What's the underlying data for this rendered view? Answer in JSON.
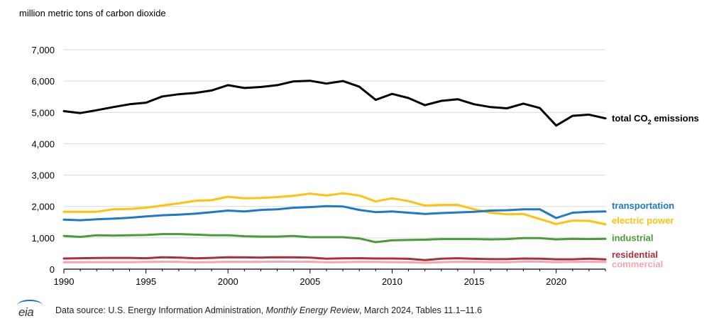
{
  "chart_data": {
    "type": "line",
    "unit_label": "million metric tons of carbon dioxide",
    "x": [
      1990,
      1991,
      1992,
      1993,
      1994,
      1995,
      1996,
      1997,
      1998,
      1999,
      2000,
      2001,
      2002,
      2003,
      2004,
      2005,
      2006,
      2007,
      2008,
      2009,
      2010,
      2011,
      2012,
      2013,
      2014,
      2015,
      2016,
      2017,
      2018,
      2019,
      2020,
      2021,
      2022,
      2023
    ],
    "xlim": [
      1990,
      2023
    ],
    "xticks": [
      1990,
      1995,
      2000,
      2005,
      2010,
      2015,
      2020
    ],
    "ylim": [
      0,
      7000
    ],
    "yticks": [
      0,
      1000,
      2000,
      3000,
      4000,
      5000,
      6000,
      7000
    ],
    "ytick_labels": [
      "0",
      "1,000",
      "2,000",
      "3,000",
      "4,000",
      "5,000",
      "6,000",
      "7,000"
    ],
    "grid": "horizontal",
    "series": [
      {
        "name": "commercial",
        "color": "#f4a6b0",
        "label_y": 170,
        "values": [
          220,
          220,
          225,
          225,
          225,
          228,
          235,
          232,
          220,
          225,
          235,
          230,
          232,
          240,
          235,
          235,
          220,
          225,
          232,
          228,
          225,
          222,
          205,
          225,
          232,
          230,
          225,
          222,
          240,
          240,
          220,
          230,
          235,
          230
        ]
      },
      {
        "name": "residential",
        "color": "#a8323a",
        "label_y": 480,
        "values": [
          340,
          350,
          355,
          360,
          360,
          350,
          380,
          370,
          345,
          360,
          380,
          375,
          370,
          380,
          375,
          370,
          335,
          345,
          350,
          340,
          340,
          330,
          290,
          335,
          350,
          330,
          320,
          320,
          340,
          335,
          315,
          315,
          335,
          310
        ]
      },
      {
        "name": "industrial",
        "color": "#4b9a3c",
        "label_y": 1010,
        "values": [
          1060,
          1030,
          1080,
          1070,
          1080,
          1090,
          1120,
          1120,
          1100,
          1080,
          1080,
          1050,
          1040,
          1040,
          1060,
          1020,
          1020,
          1020,
          980,
          860,
          920,
          930,
          940,
          960,
          960,
          960,
          950,
          960,
          990,
          990,
          950,
          970,
          960,
          970
        ]
      },
      {
        "name": "electric power",
        "color": "#ffc20e",
        "label_y": 1560,
        "values": [
          1830,
          1830,
          1830,
          1910,
          1920,
          1960,
          2030,
          2100,
          2180,
          2200,
          2310,
          2260,
          2270,
          2300,
          2340,
          2410,
          2350,
          2420,
          2350,
          2160,
          2260,
          2170,
          2030,
          2050,
          2050,
          1910,
          1800,
          1750,
          1760,
          1600,
          1440,
          1550,
          1540,
          1430
        ]
      },
      {
        "name": "transportation",
        "color": "#1f78c8",
        "label_y": 2040,
        "values": [
          1580,
          1560,
          1590,
          1610,
          1640,
          1680,
          1720,
          1740,
          1770,
          1820,
          1870,
          1840,
          1890,
          1910,
          1960,
          1980,
          2010,
          2000,
          1890,
          1820,
          1840,
          1800,
          1760,
          1790,
          1810,
          1830,
          1870,
          1880,
          1910,
          1910,
          1630,
          1800,
          1830,
          1840
        ]
      },
      {
        "name": "total CO2 emissions",
        "label_main": "total CO",
        "label_sub": "2",
        "label_tail": " emissions",
        "color": "#000000",
        "label_y": 4830,
        "values": [
          5040,
          4980,
          5070,
          5170,
          5260,
          5310,
          5510,
          5580,
          5620,
          5700,
          5870,
          5780,
          5810,
          5870,
          5990,
          6010,
          5920,
          6000,
          5820,
          5400,
          5590,
          5460,
          5230,
          5370,
          5420,
          5260,
          5170,
          5130,
          5280,
          5140,
          4580,
          4890,
          4930,
          4810
        ]
      }
    ]
  },
  "footer": {
    "logo_text": "eia",
    "source_prefix": "Data source: U.S. Energy Information Administration, ",
    "source_title": "Monthly Energy Review",
    "source_suffix": ", March 2024, Tables 11.1–11.6"
  }
}
